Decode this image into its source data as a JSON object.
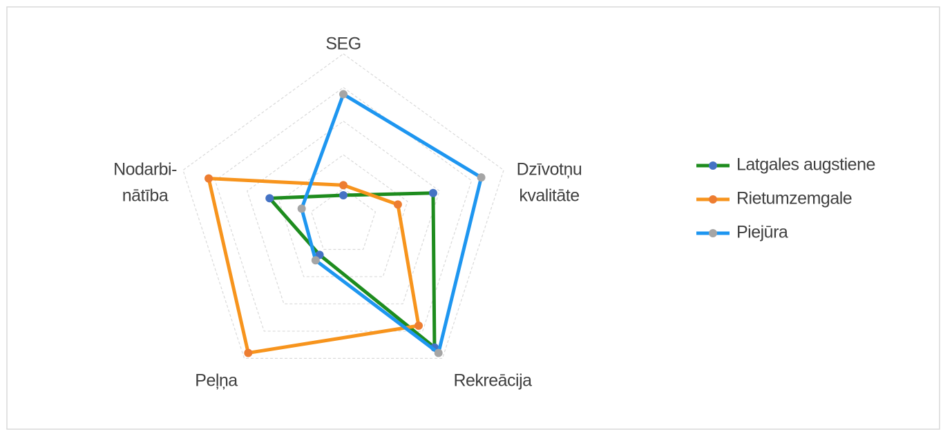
{
  "chart_data": {
    "type": "radar",
    "categories": [
      [
        "SEG"
      ],
      [
        "Dzīvotņu",
        "kvalitāte"
      ],
      [
        "Rekreācija"
      ],
      [
        "Peļņa"
      ],
      [
        "Nodarbi-",
        "nātība"
      ]
    ],
    "series": [
      {
        "name": "Latgales augstiene",
        "color": "#1e8c1e",
        "marker_color": "#4472c4",
        "values": [
          0.8,
          2.8,
          4.6,
          1.2,
          2.3
        ]
      },
      {
        "name": "Rietumzemgale",
        "color": "#f7941d",
        "marker_color": "#ed7d31",
        "values": [
          1.1,
          1.7,
          3.8,
          4.8,
          4.2
        ]
      },
      {
        "name": "Piejūra",
        "color": "#1e96f0",
        "marker_color": "#a5a5a5",
        "values": [
          3.8,
          4.3,
          4.8,
          1.4,
          1.3
        ]
      }
    ],
    "ylim": [
      0,
      5
    ],
    "yticks": [
      1,
      2,
      3,
      4,
      5
    ],
    "grid": true,
    "legend": "right"
  }
}
